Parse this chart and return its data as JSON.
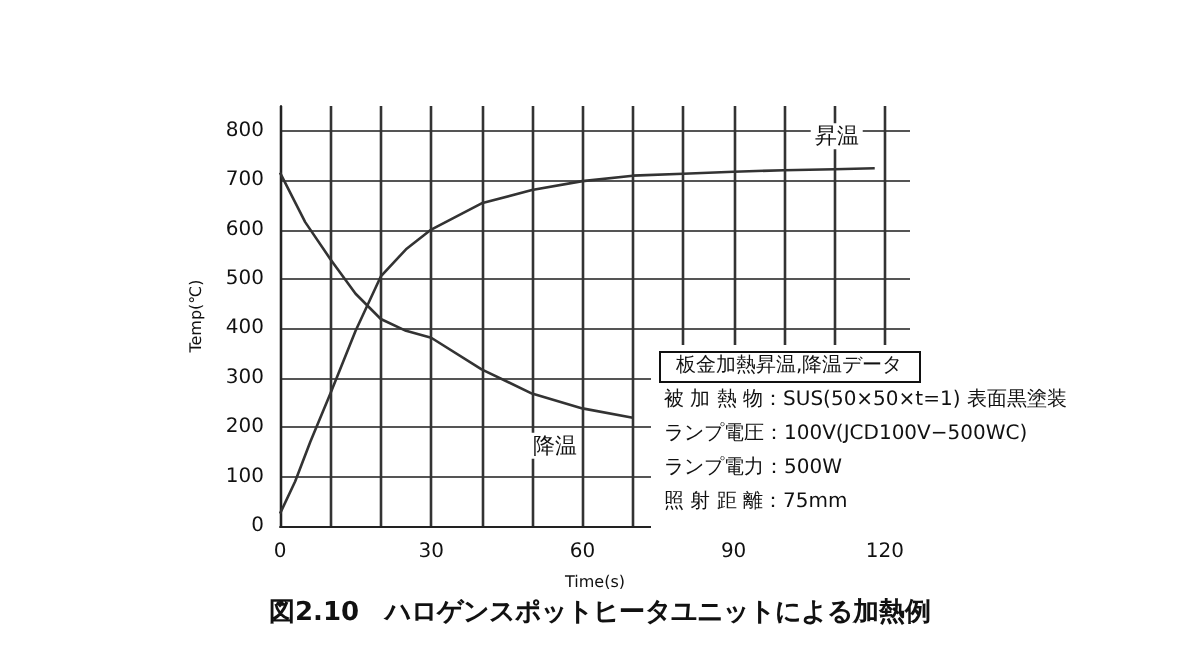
{
  "chart_data": {
    "type": "line",
    "title": "図2.10　ハロゲンスポットヒータユニットによる加熱例",
    "xlabel": "Time(s)",
    "ylabel": "Temp(℃)",
    "series": [
      {
        "name": "昇温",
        "color": "#333333",
        "x": [
          0,
          3,
          6,
          10,
          15,
          20,
          25,
          30,
          40,
          50,
          60,
          70,
          80,
          90,
          100,
          110,
          118
        ],
        "values": [
          25,
          90,
          170,
          268,
          395,
          505,
          560,
          600,
          653,
          680,
          698,
          709,
          713,
          717,
          720,
          722,
          724
        ]
      },
      {
        "name": "降温",
        "color": "#333333",
        "x": [
          0,
          5,
          10,
          15,
          20,
          25,
          30,
          40,
          50,
          60,
          70
        ],
        "values": [
          715,
          615,
          540,
          470,
          419,
          395,
          381,
          317,
          268,
          238,
          219
        ]
      }
    ],
    "xlim": [
      0,
      125
    ],
    "xticks": [
      0,
      {
        "value": 10,
        "label": null
      },
      {
        "value": 20,
        "label": null
      },
      30,
      {
        "value": 40,
        "label": null
      },
      {
        "value": 50,
        "label": null
      },
      60,
      {
        "value": 70,
        "label": null
      },
      {
        "value": 80,
        "label": null
      },
      90,
      {
        "value": 100,
        "label": null
      },
      {
        "value": 110,
        "label": null
      },
      120
    ],
    "ylim": [
      0,
      850
    ],
    "yticks": [
      0,
      100,
      200,
      300,
      400,
      500,
      600,
      700,
      800
    ],
    "grid": true,
    "legend": false,
    "marker": "none",
    "line_style": "solid",
    "annotations": [
      "板金加熱昇温,降温データ",
      "被 加 熱 物：SUS(50×50×t=1) 表面黒塗装",
      "ランプ電圧：100V(JCD100V−500WC)",
      "ランプ電力：500W",
      "照 射 距 離：75mm"
    ]
  }
}
